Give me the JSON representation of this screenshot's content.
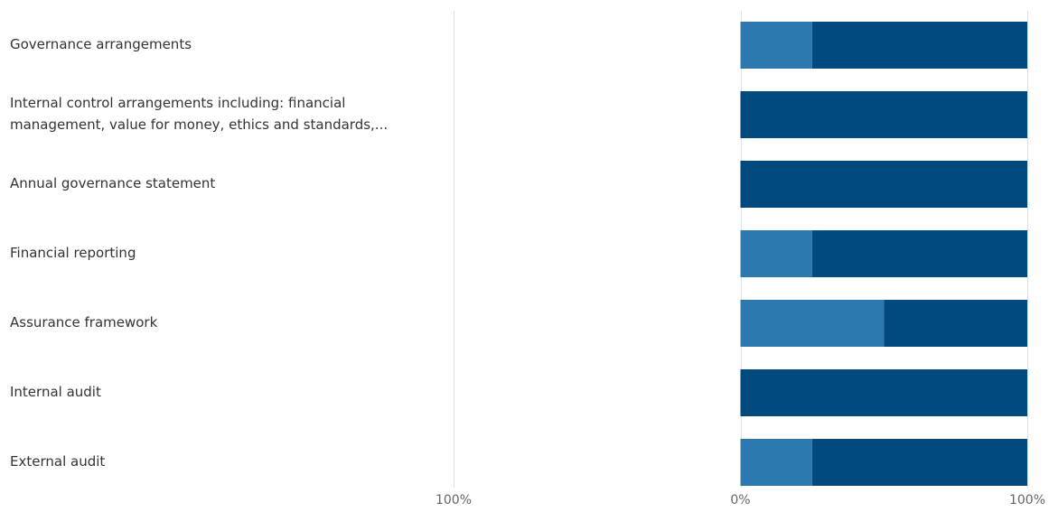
{
  "chart_data": {
    "type": "bar",
    "orientation": "horizontal",
    "stacked": true,
    "diverging": true,
    "categories": [
      [
        "Governance arrangements"
      ],
      [
        "Internal control arrangements including: financial",
        "management, value for money, ethics and standards,..."
      ],
      [
        "Annual governance statement"
      ],
      [
        "Financial reporting"
      ],
      [
        "Assurance framework"
      ],
      [
        "Internal audit"
      ],
      [
        "External audit"
      ]
    ],
    "series": [
      {
        "color": "#2e78b0",
        "values": [
          25,
          0,
          0,
          25,
          50,
          0,
          25
        ]
      },
      {
        "color": "#004a80",
        "values": [
          75,
          100,
          100,
          75,
          50,
          100,
          75
        ]
      }
    ],
    "xlim": [
      -100,
      100
    ],
    "ticks": [
      {
        "value": -100,
        "label": "100%"
      },
      {
        "value": 0,
        "label": "0%"
      },
      {
        "value": 100,
        "label": "100%"
      }
    ],
    "grid": true,
    "legend": "none"
  }
}
